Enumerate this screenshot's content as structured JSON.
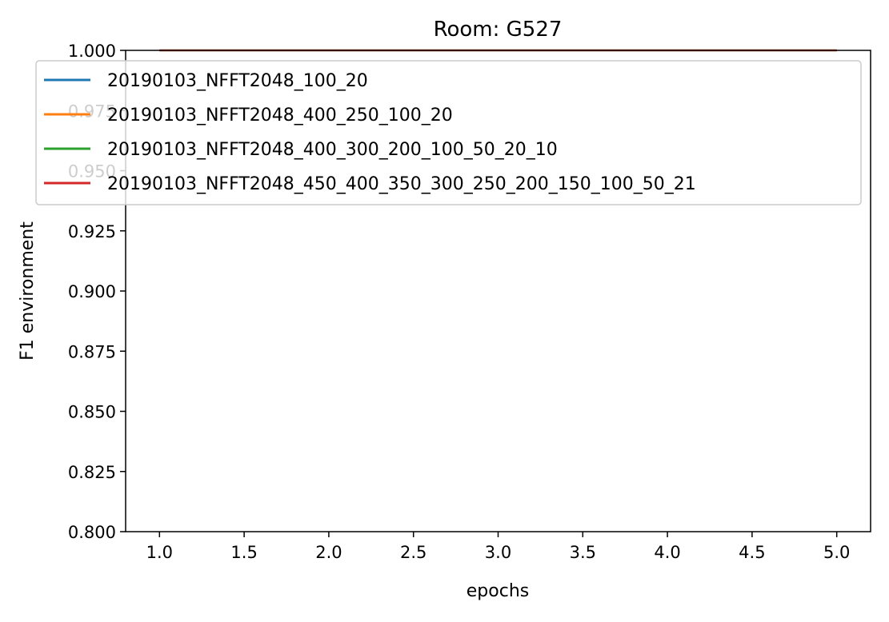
{
  "chart_data": {
    "type": "line",
    "title": "Room: G527",
    "xlabel": "epochs",
    "ylabel": "F1 environment",
    "xlim": [
      0.8,
      5.2
    ],
    "ylim": [
      0.8,
      1.0
    ],
    "x_ticks": [
      "1.0",
      "1.5",
      "2.0",
      "2.5",
      "3.0",
      "3.5",
      "4.0",
      "4.5",
      "5.0"
    ],
    "y_ticks": [
      "0.800",
      "0.825",
      "0.850",
      "0.875",
      "0.900",
      "0.925",
      "0.950",
      "0.975",
      "1.000"
    ],
    "grid": false,
    "legend_position": "upper-left",
    "x": [
      1,
      2,
      3,
      4,
      5
    ],
    "series": [
      {
        "name": "20190103_NFFT2048_100_20",
        "color": "#1f77b4",
        "values": [
          1.0,
          1.0,
          1.0,
          1.0,
          1.0
        ]
      },
      {
        "name": "20190103_NFFT2048_400_250_100_20",
        "color": "#ff7f0e",
        "values": [
          1.0,
          1.0,
          1.0,
          1.0,
          1.0
        ]
      },
      {
        "name": "20190103_NFFT2048_400_300_200_100_50_20_10",
        "color": "#2ca02c",
        "values": [
          1.0,
          1.0,
          1.0,
          1.0,
          1.0
        ]
      },
      {
        "name": "20190103_NFFT2048_450_400_350_300_250_200_150_100_50_21",
        "color": "#d62728",
        "values": [
          1.0,
          1.0,
          1.0,
          1.0,
          1.0
        ]
      }
    ]
  }
}
